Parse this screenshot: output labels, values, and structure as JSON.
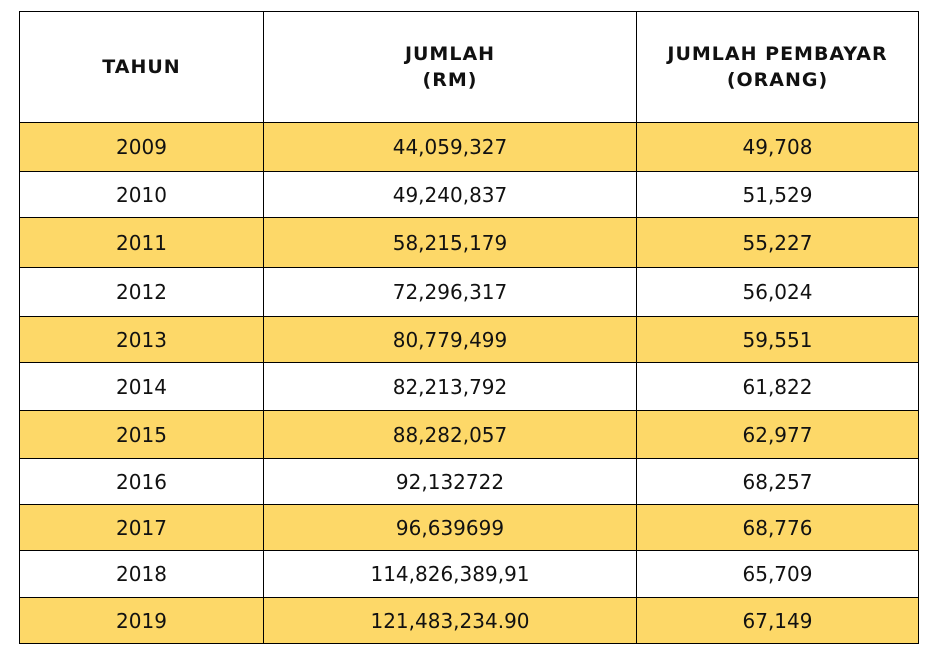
{
  "table": {
    "headers": [
      {
        "lines": [
          "TAHUN"
        ]
      },
      {
        "lines": [
          "JUMLAH",
          "(RM)"
        ]
      },
      {
        "lines": [
          "JUMLAH PEMBAYAR",
          "(ORANG)"
        ]
      }
    ],
    "rows": [
      {
        "tahun": "2009",
        "jumlah": "44,059,327",
        "pembayar": "49,708"
      },
      {
        "tahun": "2010",
        "jumlah": "49,240,837",
        "pembayar": "51,529"
      },
      {
        "tahun": "2011",
        "jumlah": "58,215,179",
        "pembayar": "55,227"
      },
      {
        "tahun": "2012",
        "jumlah": "72,296,317",
        "pembayar": "56,024"
      },
      {
        "tahun": "2013",
        "jumlah": "80,779,499",
        "pembayar": "59,551"
      },
      {
        "tahun": "2014",
        "jumlah": "82,213,792",
        "pembayar": "61,822"
      },
      {
        "tahun": "2015",
        "jumlah": "88,282,057",
        "pembayar": "62,977"
      },
      {
        "tahun": "2016",
        "jumlah": "92,132722",
        "pembayar": "68,257"
      },
      {
        "tahun": "2017",
        "jumlah": "96,639699",
        "pembayar": "68,776"
      },
      {
        "tahun": "2018",
        "jumlah": "114,826,389,91",
        "pembayar": "65,709"
      },
      {
        "tahun": "2019",
        "jumlah": "121,483,234.90",
        "pembayar": "67,149"
      }
    ]
  },
  "colors": {
    "band": "#fdd868",
    "plain": "#ffffff",
    "border": "#000000"
  }
}
